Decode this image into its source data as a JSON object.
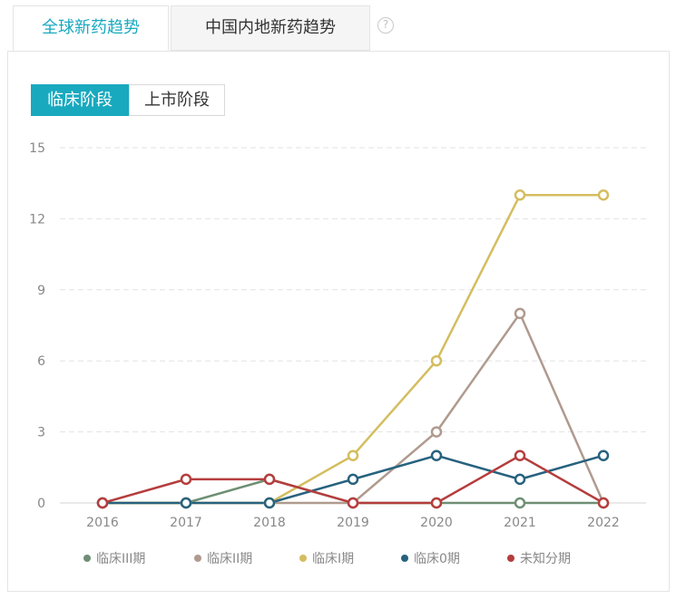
{
  "tabs": {
    "global": "全球新药趋势",
    "china": "中国内地新药趋势"
  },
  "help_icon": "?",
  "segments": {
    "clinical": "临床阶段",
    "market": "上市阶段"
  },
  "chart_data": {
    "type": "line",
    "x": [
      "2016",
      "2017",
      "2018",
      "2019",
      "2020",
      "2021",
      "2022"
    ],
    "ylim": [
      0,
      15
    ],
    "yticks": [
      "0",
      "3",
      "6",
      "9",
      "12",
      "15"
    ],
    "grid": true,
    "legend_position": "bottom",
    "series": [
      {
        "name": "临床III期",
        "color": "#6e8f74",
        "values": [
          0,
          0,
          1,
          0,
          0,
          0,
          0
        ]
      },
      {
        "name": "临床II期",
        "color": "#b09a8e",
        "values": [
          0,
          0,
          0,
          0,
          3,
          8,
          0
        ]
      },
      {
        "name": "临床I期",
        "color": "#d4bd5f",
        "values": [
          0,
          0,
          0,
          2,
          6,
          13,
          13
        ]
      },
      {
        "name": "临床0期",
        "color": "#27627e",
        "values": [
          0,
          0,
          0,
          1,
          2,
          1,
          2
        ]
      },
      {
        "name": "未知分期",
        "color": "#b53d3d",
        "values": [
          0,
          1,
          1,
          0,
          0,
          2,
          0
        ]
      }
    ]
  }
}
